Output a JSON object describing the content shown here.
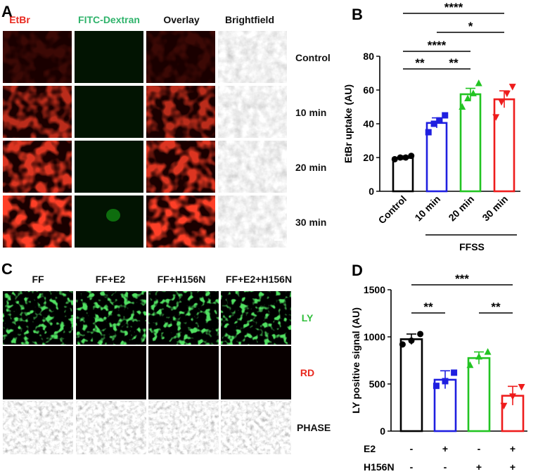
{
  "panels": {
    "A": {
      "letter": "A",
      "column_labels": [
        {
          "text": "EtBr",
          "color": "#e8281e"
        },
        {
          "text": "FITC-Dextran",
          "color": "#2fb36b"
        },
        {
          "text": "Overlay",
          "color": "#111111"
        },
        {
          "text": "Brightfield",
          "color": "#111111"
        }
      ],
      "row_labels": [
        "Control",
        "10 min",
        "20 min",
        "30 min"
      ],
      "image_tones": {
        "red_levels": [
          0.15,
          0.7,
          0.85,
          1.0
        ],
        "green_levels": [
          0.05,
          0.05,
          0.05,
          0.25
        ]
      }
    },
    "C": {
      "letter": "C",
      "column_labels": [
        "FF",
        "FF+E2",
        "FF+H156N",
        "FF+E2+H156N"
      ],
      "row_labels": [
        {
          "text": "LY",
          "color": "#2fbf3a"
        },
        {
          "text": "RD",
          "color": "#e8281e"
        },
        {
          "text": "PHASE",
          "color": "#111111"
        }
      ]
    }
  },
  "chart_data": [
    {
      "panel": "B",
      "type": "bar",
      "letter": "B",
      "categories": [
        "Control",
        "10 min",
        "20 min",
        "30 min"
      ],
      "values": [
        19.8,
        40.5,
        57.5,
        54.5
      ],
      "errors": [
        1.2,
        3.0,
        3.5,
        5.0
      ],
      "points": [
        [
          19,
          20,
          20,
          21
        ],
        [
          35,
          40,
          42,
          45
        ],
        [
          50,
          55,
          58,
          64
        ],
        [
          44,
          53,
          58,
          62
        ]
      ],
      "colors": [
        "#000000",
        "#1f1fe0",
        "#22c422",
        "#ee1c1c"
      ],
      "markers": [
        "circle",
        "square",
        "triangle",
        "triangle-down"
      ],
      "ylabel": "EtBr uptake (AU)",
      "ylim": [
        0,
        80
      ],
      "yticks": [
        0,
        20,
        40,
        60,
        80
      ],
      "group_label": "FFSS",
      "significance": [
        {
          "from": 0,
          "to": 3,
          "label": "****"
        },
        {
          "from": 1,
          "to": 3,
          "label": "*"
        },
        {
          "from": 0,
          "to": 2,
          "label": "****"
        },
        {
          "from": 0,
          "to": 1,
          "label": "**"
        },
        {
          "from": 1,
          "to": 2,
          "label": "**"
        }
      ]
    },
    {
      "panel": "D",
      "type": "bar",
      "letter": "D",
      "categories": [
        "",
        "",
        "",
        ""
      ],
      "values": [
        975,
        545,
        775,
        375
      ],
      "errors": [
        55,
        95,
        65,
        100
      ],
      "points": [
        [
          920,
          960,
          1030
        ],
        [
          480,
          530,
          620
        ],
        [
          700,
          790,
          840
        ],
        [
          270,
          370,
          470
        ]
      ],
      "colors": [
        "#000000",
        "#1f1fe0",
        "#22c422",
        "#ee1c1c"
      ],
      "markers": [
        "circle",
        "square",
        "triangle",
        "triangle-down"
      ],
      "ylabel": "LY positive signal (AU)",
      "ylim": [
        0,
        1500
      ],
      "yticks": [
        0,
        500,
        1000,
        1500
      ],
      "conditions": [
        {
          "name": "E2",
          "values": [
            "-",
            "+",
            "-",
            "+"
          ]
        },
        {
          "name": "H156N",
          "values": [
            "-",
            "-",
            "+",
            "+"
          ]
        }
      ],
      "significance": [
        {
          "from": 0,
          "to": 3,
          "label": "***"
        },
        {
          "from": 0,
          "to": 1,
          "label": "**"
        },
        {
          "from": 2,
          "to": 3,
          "label": "**"
        }
      ]
    }
  ]
}
